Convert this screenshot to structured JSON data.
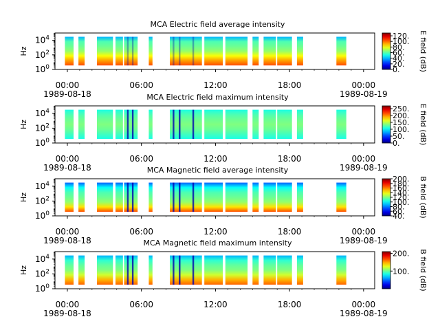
{
  "chart_data": [
    {
      "type": "heatmap",
      "title": "MCA  Electric field average intensity",
      "ylabel": "Hz",
      "y_scale": "log",
      "ylim": [
        1,
        100000
      ],
      "y_ticks": [
        {
          "base": "10",
          "exp": "0"
        },
        {
          "base": "10",
          "exp": "2"
        },
        {
          "base": "10",
          "exp": "4"
        }
      ],
      "x_ticks": [
        {
          "hours": 0,
          "time": "00:00",
          "date": "1989-08-18"
        },
        {
          "hours": 6,
          "time": "06:00",
          "date": ""
        },
        {
          "hours": 12,
          "time": "12:00",
          "date": ""
        },
        {
          "hours": 18,
          "time": "18:00",
          "date": ""
        },
        {
          "hours": 24,
          "time": "00:00",
          "date": "1989-08-19"
        }
      ],
      "colorbar": {
        "label": "E field (dB)",
        "range": [
          0,
          130
        ],
        "ticks": [
          "0.",
          "20.",
          "40.",
          "60.",
          "80.",
          "100.",
          "120."
        ],
        "tick_values": [
          0,
          20,
          40,
          60,
          80,
          100,
          120
        ]
      },
      "colormap": "jet"
    },
    {
      "type": "heatmap",
      "title": "MCA  Electric field maximum intensity",
      "ylabel": "Hz",
      "y_scale": "log",
      "ylim": [
        1,
        100000
      ],
      "y_ticks": [
        {
          "base": "10",
          "exp": "0"
        },
        {
          "base": "10",
          "exp": "2"
        },
        {
          "base": "10",
          "exp": "4"
        }
      ],
      "x_ticks": [
        {
          "hours": 0,
          "time": "00:00",
          "date": "1989-08-18"
        },
        {
          "hours": 6,
          "time": "06:00",
          "date": ""
        },
        {
          "hours": 12,
          "time": "12:00",
          "date": ""
        },
        {
          "hours": 18,
          "time": "18:00",
          "date": ""
        },
        {
          "hours": 24,
          "time": "00:00",
          "date": "1989-08-19"
        }
      ],
      "colorbar": {
        "label": "E field (dB)",
        "range": [
          0,
          270
        ],
        "ticks": [
          "0.",
          "50.",
          "100.",
          "150.",
          "200.",
          "250."
        ],
        "tick_values": [
          0,
          50,
          100,
          150,
          200,
          250
        ]
      },
      "colormap": "jet"
    },
    {
      "type": "heatmap",
      "title": "MCA  Magnetic field average intensity",
      "ylabel": "Hz",
      "y_scale": "log",
      "ylim": [
        1,
        100000
      ],
      "y_ticks": [
        {
          "base": "10",
          "exp": "0"
        },
        {
          "base": "10",
          "exp": "2"
        },
        {
          "base": "10",
          "exp": "4"
        }
      ],
      "x_ticks": [
        {
          "hours": 0,
          "time": "00:00",
          "date": "1989-08-18"
        },
        {
          "hours": 6,
          "time": "06:00",
          "date": ""
        },
        {
          "hours": 12,
          "time": "12:00",
          "date": ""
        },
        {
          "hours": 18,
          "time": "18:00",
          "date": ""
        },
        {
          "hours": 24,
          "time": "00:00",
          "date": "1989-08-19"
        }
      ],
      "colorbar": {
        "label": "B field (dB)",
        "range": [
          40,
          200
        ],
        "ticks": [
          "40.",
          "60.",
          "80.",
          "100.",
          "120.",
          "140.",
          "160.",
          "180.",
          "200."
        ],
        "tick_values": [
          40,
          60,
          80,
          100,
          120,
          140,
          160,
          180,
          200
        ]
      },
      "colormap": "jet"
    },
    {
      "type": "heatmap",
      "title": "MCA  Magnetic field maximum intensity",
      "ylabel": "Hz",
      "y_scale": "log",
      "ylim": [
        1,
        100000
      ],
      "y_ticks": [
        {
          "base": "10",
          "exp": "0"
        },
        {
          "base": "10",
          "exp": "2"
        },
        {
          "base": "10",
          "exp": "4"
        }
      ],
      "x_ticks": [
        {
          "hours": 0,
          "time": "00:00",
          "date": "1989-08-18"
        },
        {
          "hours": 6,
          "time": "06:00",
          "date": ""
        },
        {
          "hours": 12,
          "time": "12:00",
          "date": ""
        },
        {
          "hours": 18,
          "time": "18:00",
          "date": ""
        },
        {
          "hours": 24,
          "time": "00:00",
          "date": "1989-08-19"
        }
      ],
      "colorbar": {
        "label": "B field (dB)",
        "range": [
          0,
          210
        ],
        "ticks": [
          "100.",
          "200."
        ],
        "tick_values": [
          100,
          200
        ]
      },
      "colormap": "jet"
    }
  ],
  "data_segments_hours": [
    [
      -0.2,
      0.5
    ],
    [
      0.9,
      1.4
    ],
    [
      2.4,
      3.7
    ],
    [
      3.9,
      4.5
    ],
    [
      4.6,
      5.7
    ],
    [
      6.6,
      6.9
    ],
    [
      8.3,
      10.9
    ],
    [
      11.1,
      12.6
    ],
    [
      12.8,
      14.6
    ],
    [
      15.0,
      15.5
    ],
    [
      15.9,
      16.9
    ],
    [
      17.0,
      18.2
    ],
    [
      18.6,
      19.1
    ],
    [
      21.8,
      22.6
    ]
  ],
  "dropout_hours": [
    4.9,
    5.3,
    8.6,
    9.1,
    10.2
  ]
}
